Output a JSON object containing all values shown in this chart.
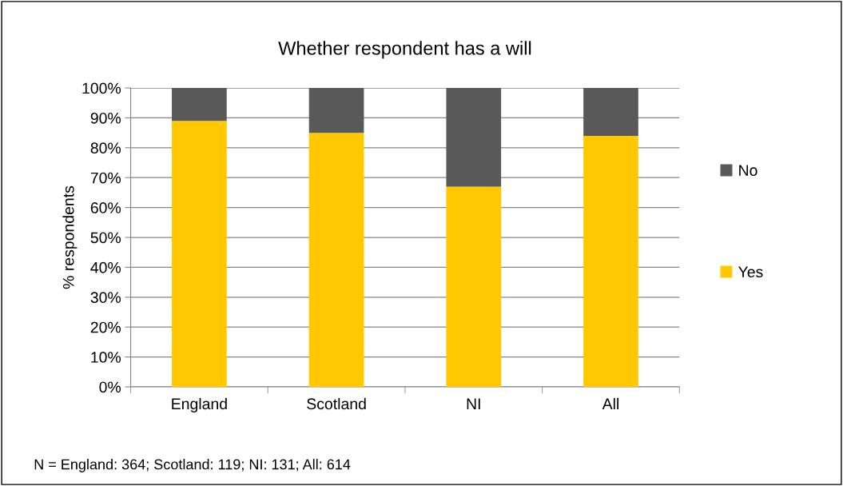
{
  "chart_data": {
    "type": "bar",
    "stacked": true,
    "title": "Whether respondent has a will",
    "ylabel": "% respondents",
    "categories": [
      "England",
      "Scotland",
      "NI",
      "All"
    ],
    "series": [
      {
        "name": "Yes",
        "color": "#ffc800",
        "values": [
          89,
          85,
          67,
          84
        ]
      },
      {
        "name": "No",
        "color": "#595959",
        "values": [
          11,
          15,
          33,
          16
        ]
      }
    ],
    "ylim": [
      0,
      100
    ],
    "yticks": [
      {
        "value": 0,
        "label": "0%"
      },
      {
        "value": 10,
        "label": "10%"
      },
      {
        "value": 20,
        "label": "20%"
      },
      {
        "value": 30,
        "label": "30%"
      },
      {
        "value": 40,
        "label": "40%"
      },
      {
        "value": 50,
        "label": "50%"
      },
      {
        "value": 60,
        "label": "60%"
      },
      {
        "value": 70,
        "label": "70%"
      },
      {
        "value": 80,
        "label": "80%"
      },
      {
        "value": 90,
        "label": "90%"
      },
      {
        "value": 100,
        "label": "100%"
      }
    ],
    "grid": "y",
    "legend": "right",
    "annotations": [
      "N = England: 364; Scotland: 119; NI: 131; All: 614"
    ]
  }
}
